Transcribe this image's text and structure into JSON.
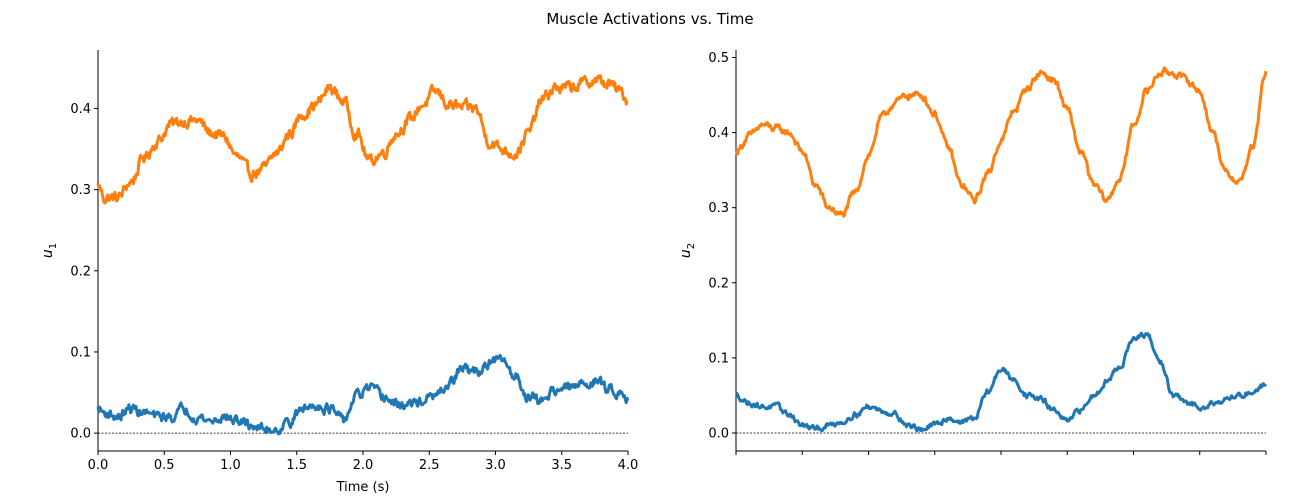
{
  "figure": {
    "title": "Muscle Activations vs. Time"
  },
  "chart_data": [
    {
      "type": "line",
      "ylabel": "u",
      "ylabel_sub": "1",
      "xlabel": "Time (s)",
      "xlim": [
        0,
        4
      ],
      "ylim": [
        -0.022,
        0.472
      ],
      "xticks": [
        "0.0",
        "0.5",
        "1.0",
        "1.5",
        "2.0",
        "2.5",
        "3.0",
        "3.5",
        "4.0"
      ],
      "xtick_values": [
        0,
        0.5,
        1,
        1.5,
        2,
        2.5,
        3,
        3.5,
        4
      ],
      "yticks": [
        "0.0",
        "0.1",
        "0.2",
        "0.3",
        "0.4"
      ],
      "ytick_values": [
        0,
        0.1,
        0.2,
        0.3,
        0.4
      ],
      "baseline": 0.0,
      "series": [
        {
          "color": "#ff7f0e",
          "x": [
            0,
            0.05,
            0.15,
            0.25,
            0.35,
            0.45,
            0.55,
            0.65,
            0.75,
            0.85,
            0.95,
            1.05,
            1.15,
            1.25,
            1.35,
            1.45,
            1.55,
            1.65,
            1.75,
            1.85,
            1.95,
            2.05,
            2.15,
            2.25,
            2.35,
            2.45,
            2.55,
            2.65,
            2.75,
            2.85,
            2.95,
            3.05,
            3.15,
            3.25,
            3.35,
            3.45,
            3.55,
            3.65,
            3.75,
            3.85,
            3.95,
            4.0
          ],
          "y": [
            0.305,
            0.29,
            0.29,
            0.31,
            0.34,
            0.36,
            0.38,
            0.385,
            0.385,
            0.37,
            0.365,
            0.34,
            0.32,
            0.325,
            0.345,
            0.37,
            0.395,
            0.405,
            0.425,
            0.41,
            0.37,
            0.335,
            0.345,
            0.37,
            0.385,
            0.405,
            0.42,
            0.405,
            0.4,
            0.4,
            0.36,
            0.35,
            0.345,
            0.37,
            0.41,
            0.425,
            0.425,
            0.43,
            0.435,
            0.43,
            0.42,
            0.41
          ],
          "noise": 0.006
        },
        {
          "color": "#1f77b4",
          "x": [
            0,
            0.05,
            0.15,
            0.25,
            0.35,
            0.45,
            0.55,
            0.65,
            0.75,
            0.85,
            0.95,
            1.05,
            1.15,
            1.25,
            1.35,
            1.45,
            1.55,
            1.65,
            1.75,
            1.85,
            1.95,
            2.05,
            2.15,
            2.25,
            2.35,
            2.45,
            2.55,
            2.65,
            2.75,
            2.85,
            2.95,
            3.05,
            3.15,
            3.25,
            3.35,
            3.45,
            3.55,
            3.65,
            3.75,
            3.85,
            3.95,
            4.0
          ],
          "y": [
            0.03,
            0.025,
            0.02,
            0.03,
            0.025,
            0.02,
            0.02,
            0.03,
            0.02,
            0.015,
            0.02,
            0.015,
            0.01,
            0.005,
            0.005,
            0.015,
            0.03,
            0.035,
            0.03,
            0.015,
            0.045,
            0.055,
            0.045,
            0.035,
            0.035,
            0.04,
            0.045,
            0.06,
            0.08,
            0.075,
            0.085,
            0.09,
            0.07,
            0.045,
            0.04,
            0.055,
            0.055,
            0.06,
            0.065,
            0.055,
            0.05,
            0.045
          ],
          "noise": 0.005
        }
      ]
    },
    {
      "type": "line",
      "ylabel": "u",
      "ylabel_sub": "2",
      "xlabel": "",
      "xlim": [
        0,
        4
      ],
      "ylim": [
        -0.024,
        0.51
      ],
      "xticks": [],
      "xtick_values": [
        0,
        0.5,
        1,
        1.5,
        2,
        2.5,
        3,
        3.5,
        4
      ],
      "yticks": [
        "0.0",
        "0.1",
        "0.2",
        "0.3",
        "0.4",
        "0.5"
      ],
      "ytick_values": [
        0,
        0.1,
        0.2,
        0.3,
        0.4,
        0.5
      ],
      "baseline": 0.0,
      "series": [
        {
          "color": "#ff7f0e",
          "x": [
            0,
            0.1,
            0.2,
            0.3,
            0.4,
            0.5,
            0.6,
            0.7,
            0.8,
            0.9,
            1.0,
            1.1,
            1.2,
            1.3,
            1.4,
            1.5,
            1.6,
            1.7,
            1.8,
            1.9,
            2.0,
            2.1,
            2.2,
            2.3,
            2.4,
            2.5,
            2.6,
            2.7,
            2.8,
            2.9,
            3.0,
            3.1,
            3.2,
            3.3,
            3.4,
            3.5,
            3.6,
            3.7,
            3.8,
            3.9,
            4.0
          ],
          "y": [
            0.375,
            0.395,
            0.41,
            0.405,
            0.4,
            0.375,
            0.33,
            0.3,
            0.29,
            0.32,
            0.37,
            0.42,
            0.44,
            0.45,
            0.45,
            0.425,
            0.38,
            0.33,
            0.31,
            0.345,
            0.39,
            0.43,
            0.46,
            0.48,
            0.47,
            0.43,
            0.375,
            0.33,
            0.31,
            0.34,
            0.41,
            0.455,
            0.48,
            0.48,
            0.47,
            0.455,
            0.4,
            0.345,
            0.335,
            0.38,
            0.48
          ],
          "noise": 0.004
        },
        {
          "color": "#1f77b4",
          "x": [
            0,
            0.1,
            0.2,
            0.3,
            0.4,
            0.5,
            0.6,
            0.7,
            0.8,
            0.9,
            1.0,
            1.1,
            1.2,
            1.3,
            1.4,
            1.5,
            1.6,
            1.7,
            1.8,
            1.9,
            2.0,
            2.1,
            2.2,
            2.3,
            2.4,
            2.5,
            2.6,
            2.7,
            2.8,
            2.9,
            3.0,
            3.1,
            3.2,
            3.3,
            3.4,
            3.5,
            3.6,
            3.7,
            3.8,
            3.9,
            4.0
          ],
          "y": [
            0.05,
            0.04,
            0.035,
            0.035,
            0.025,
            0.01,
            0.005,
            0.01,
            0.015,
            0.025,
            0.035,
            0.03,
            0.025,
            0.01,
            0.005,
            0.01,
            0.02,
            0.015,
            0.02,
            0.055,
            0.085,
            0.07,
            0.05,
            0.045,
            0.03,
            0.015,
            0.03,
            0.05,
            0.07,
            0.09,
            0.125,
            0.13,
            0.095,
            0.05,
            0.04,
            0.035,
            0.04,
            0.045,
            0.05,
            0.055,
            0.065
          ],
          "noise": 0.003
        }
      ]
    }
  ]
}
